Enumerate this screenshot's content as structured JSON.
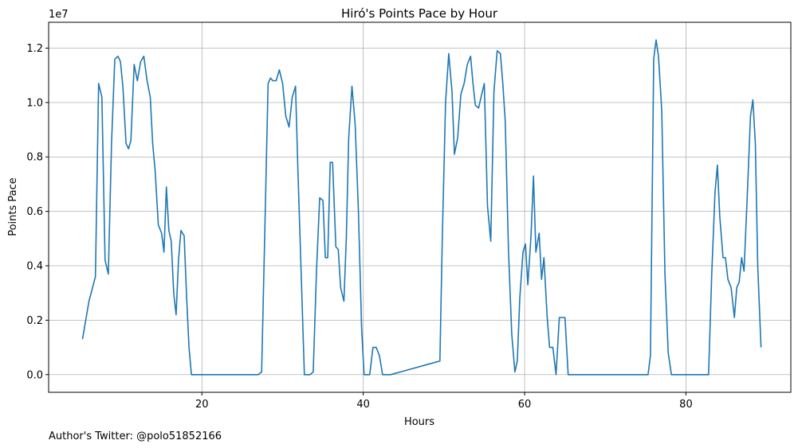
{
  "chart_data": {
    "type": "line",
    "title": "Hiró's Points Pace by Hour",
    "xlabel": "Hours",
    "ylabel": "Points Pace",
    "y_offset_label": "1e7",
    "xlim": [
      1,
      93
    ],
    "ylim": [
      -650000,
      12950000
    ],
    "x_ticks": [
      20,
      40,
      60,
      80
    ],
    "y_ticks": [
      0,
      2000000,
      4000000,
      6000000,
      8000000,
      10000000,
      12000000
    ],
    "x_tick_labels": [
      "20",
      "40",
      "60",
      "80"
    ],
    "y_tick_labels": [
      "0.0",
      "0.2",
      "0.4",
      "0.6",
      "0.8",
      "1.0",
      "1.2"
    ],
    "grid": true,
    "color": "#1f77b4",
    "series": [
      {
        "x": [
          5.2,
          6,
          6.8,
          7.2,
          7.6,
          8.0,
          8.4,
          8.8,
          9.2,
          9.6,
          9.9,
          10.2,
          10.6,
          10.9,
          11.2,
          11.6,
          12.0,
          12.4,
          12.8,
          13.2,
          13.6,
          13.9,
          14.2,
          14.6,
          15.0,
          15.3,
          15.6,
          15.9,
          16.2,
          16.5,
          16.8,
          17.1,
          17.4,
          17.8,
          18.1,
          18.4,
          18.7,
          19.0,
          19.3,
          27.0,
          27.4,
          27.8,
          28.2,
          28.5,
          28.8,
          29.2,
          29.6,
          30.0,
          30.4,
          30.8,
          31.2,
          31.6,
          31.9,
          32.3,
          32.7,
          33.0,
          33.4,
          33.8,
          34.2,
          34.6,
          35.0,
          35.3,
          35.6,
          35.9,
          36.2,
          36.6,
          36.9,
          37.2,
          37.6,
          37.9,
          38.2,
          38.6,
          39.0,
          39.4,
          39.8,
          40.1,
          40.4,
          40.8,
          41.2,
          41.6,
          42.0,
          42.4,
          42.8,
          43.1,
          43.4,
          49.5,
          49.8,
          50.2,
          50.6,
          51.0,
          51.3,
          51.7,
          52.1,
          52.5,
          52.9,
          53.3,
          53.6,
          53.9,
          54.3,
          54.6,
          55.0,
          55.4,
          55.8,
          56.2,
          56.6,
          57.0,
          57.3,
          57.6,
          58.0,
          58.4,
          58.8,
          59.1,
          59.4,
          59.8,
          60.1,
          60.4,
          60.8,
          61.1,
          61.4,
          61.8,
          62.1,
          62.4,
          62.8,
          63.1,
          63.5,
          63.9,
          64.3,
          64.6,
          65.0,
          65.4,
          65.7,
          66.0,
          75.3,
          75.6,
          76.0,
          76.3,
          76.6,
          77.0,
          77.4,
          77.8,
          78.2,
          78.6,
          82.8,
          83.2,
          83.6,
          83.9,
          84.2,
          84.6,
          84.9,
          85.2,
          85.6,
          86.0,
          86.3,
          86.6,
          86.9,
          87.2,
          87.6,
          88.0,
          88.3,
          88.6,
          88.9,
          89.3
        ],
        "y": [
          1300000,
          2700000,
          3600000,
          10700000,
          10200000,
          4200000,
          3700000,
          8500000,
          11600000,
          11700000,
          11500000,
          10600000,
          8500000,
          8300000,
          8600000,
          11400000,
          10800000,
          11500000,
          11700000,
          10800000,
          10200000,
          8500000,
          7500000,
          5500000,
          5200000,
          4500000,
          6900000,
          5300000,
          4900000,
          3000000,
          2200000,
          4200000,
          5300000,
          5100000,
          2900000,
          1000000,
          0,
          0,
          0,
          0,
          100000,
          5300000,
          10700000,
          10900000,
          10800000,
          10800000,
          11200000,
          10700000,
          9500000,
          9100000,
          10200000,
          10600000,
          7500000,
          3800000,
          0,
          0,
          0,
          100000,
          3800000,
          6500000,
          6400000,
          4300000,
          4300000,
          7800000,
          7800000,
          4700000,
          4600000,
          3200000,
          2700000,
          5000000,
          8700000,
          10600000,
          9200000,
          6000000,
          1700000,
          0,
          0,
          0,
          1000000,
          1000000,
          700000,
          0,
          0,
          0,
          0,
          500000,
          5000000,
          10000000,
          11800000,
          10400000,
          8100000,
          8700000,
          10300000,
          10700000,
          11400000,
          11700000,
          10700000,
          9900000,
          9800000,
          10200000,
          10700000,
          6200000,
          4900000,
          10400000,
          11900000,
          11800000,
          10700000,
          9300000,
          4600000,
          1500000,
          100000,
          500000,
          2800000,
          4500000,
          4800000,
          3300000,
          5100000,
          7300000,
          4500000,
          5200000,
          3500000,
          4300000,
          2100000,
          1000000,
          1000000,
          0,
          2100000,
          2100000,
          2100000,
          0,
          0,
          0,
          0,
          700000,
          11600000,
          12300000,
          11700000,
          9700000,
          3700000,
          800000,
          0,
          0,
          0,
          3700000,
          6700000,
          7700000,
          5800000,
          4300000,
          4300000,
          3500000,
          3200000,
          2100000,
          3200000,
          3400000,
          4300000,
          3800000,
          6600000,
          9500000,
          10100000,
          8500000,
          4000000,
          1000000
        ]
      }
    ]
  },
  "footer_text": "Author's Twitter: @polo51852166"
}
